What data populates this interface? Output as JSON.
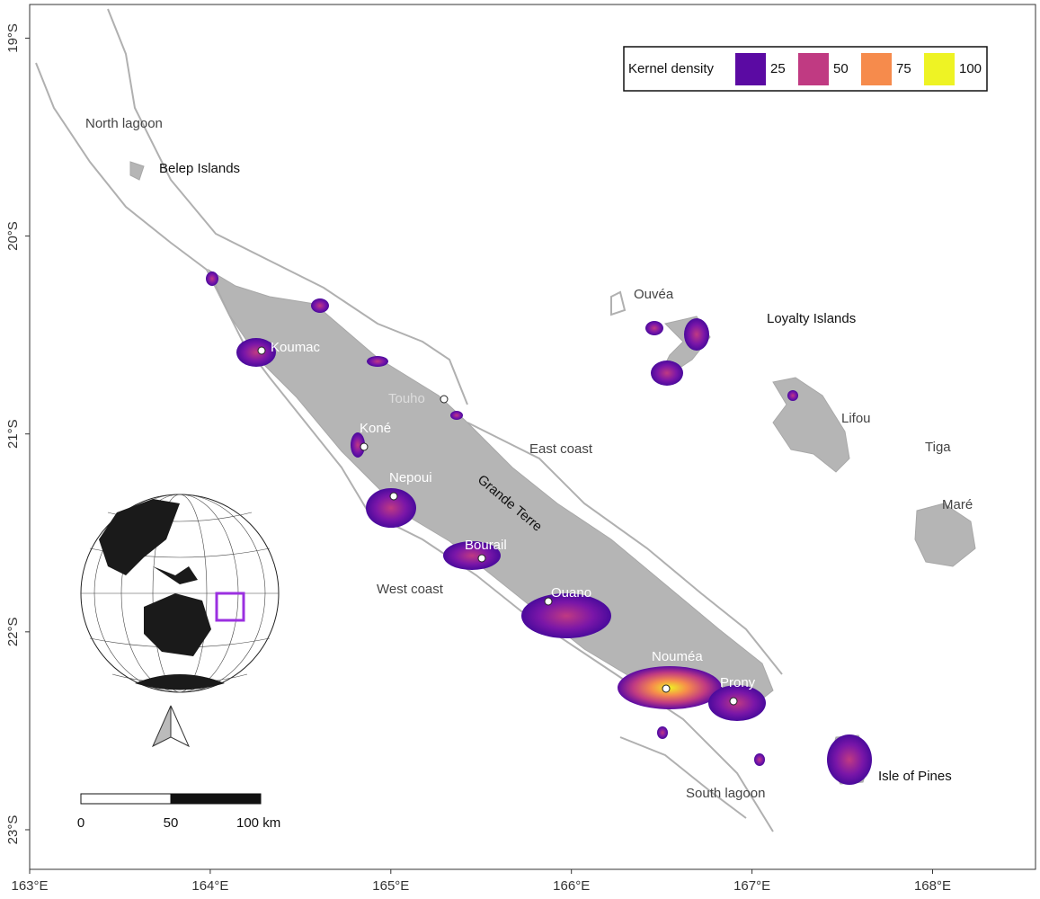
{
  "map": {
    "xlim": [
      163,
      168.57
    ],
    "ylim": [
      -23.2,
      -18.83
    ],
    "xticks": [
      {
        "value": 163,
        "label": "163°E"
      },
      {
        "value": 164,
        "label": "164°E"
      },
      {
        "value": 165,
        "label": "165°E"
      },
      {
        "value": 166,
        "label": "166°E"
      },
      {
        "value": 167,
        "label": "167°E"
      },
      {
        "value": 168,
        "label": "168°E"
      }
    ],
    "yticks": [
      {
        "value": -19,
        "label": "19°S"
      },
      {
        "value": -20,
        "label": "20°S"
      },
      {
        "value": -21,
        "label": "21°S"
      },
      {
        "value": -22,
        "label": "22°S"
      },
      {
        "value": -23,
        "label": "23°S"
      }
    ],
    "legend": {
      "title": "Kernel density",
      "ticks": [
        25,
        50,
        75,
        100
      ],
      "colors": [
        "#5b0aa3",
        "#c03a82",
        "#f68b4c",
        "#eef324"
      ]
    },
    "regions": [
      "North lagoon",
      "Belep Islands",
      "Ouvéa",
      "Loyalty Islands",
      "Lifou",
      "Tiga",
      "Maré",
      "East coast",
      "Grande Terre",
      "West coast",
      "Isle of Pines",
      "South lagoon"
    ],
    "towns": [
      "Koumac",
      "Touho",
      "Koné",
      "Nepoui",
      "Bourail",
      "Ouano",
      "Nouméa",
      "Prony"
    ],
    "scale_bar": [
      0,
      50,
      {
        "value": 100,
        "label": "100 km"
      }
    ]
  }
}
